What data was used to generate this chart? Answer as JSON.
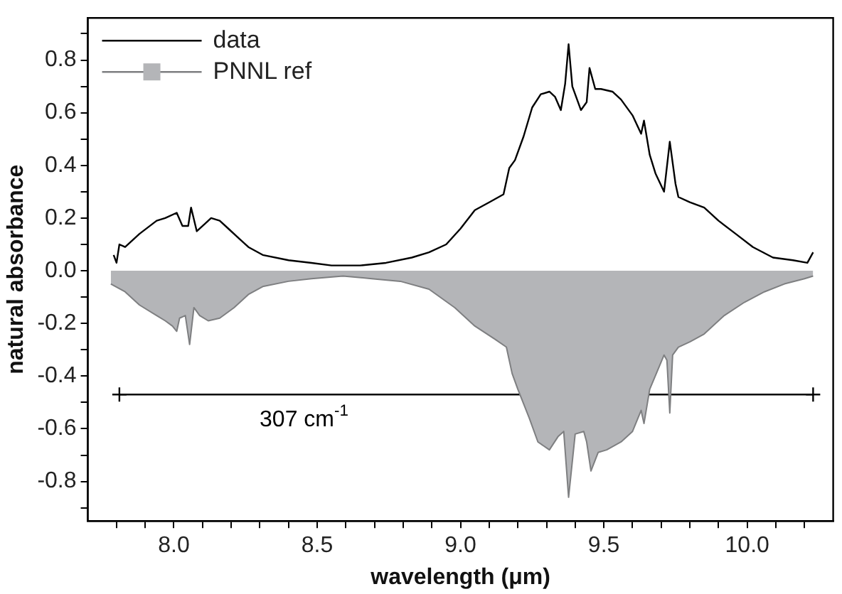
{
  "chart_data": {
    "type": "line",
    "xlabel": "wavelength (μm)",
    "ylabel": "natural absorbance",
    "xlim": [
      7.7,
      10.3
    ],
    "xticks": [
      {
        "value": 7.8,
        "label": null
      },
      {
        "value": 7.9,
        "label": null
      },
      {
        "value": 8,
        "label": "8.0"
      },
      {
        "value": 8.1,
        "label": null
      },
      {
        "value": 8.2,
        "label": null
      },
      {
        "value": 8.3,
        "label": null
      },
      {
        "value": 8.4,
        "label": null
      },
      8.5,
      {
        "value": 8.6,
        "label": null
      },
      {
        "value": 8.7,
        "label": null
      },
      {
        "value": 8.8,
        "label": null
      },
      {
        "value": 8.9,
        "label": null
      },
      {
        "value": 9,
        "label": "9.0"
      },
      {
        "value": 9.1,
        "label": null
      },
      {
        "value": 9.2,
        "label": null
      },
      {
        "value": 9.3,
        "label": null
      },
      {
        "value": 9.4,
        "label": null
      },
      9.5,
      {
        "value": 9.6,
        "label": null
      },
      {
        "value": 9.7,
        "label": null
      },
      {
        "value": 9.8,
        "label": null
      },
      {
        "value": 9.9,
        "label": null
      },
      {
        "value": 10,
        "label": "10.0"
      },
      {
        "value": 10.1,
        "label": null
      },
      {
        "value": 10.2,
        "label": null
      }
    ],
    "ylim": [
      -0.95,
      0.96
    ],
    "yticks": [
      -0.8,
      -0.6,
      -0.4,
      -0.2,
      {
        "value": 0,
        "label": "0.0"
      },
      0.2,
      0.4,
      0.6,
      0.8,
      {
        "value": -0.9,
        "label": null
      },
      {
        "value": -0.7,
        "label": null
      },
      {
        "value": -0.5,
        "label": null
      },
      {
        "value": -0.3,
        "label": null
      },
      {
        "value": -0.1,
        "label": null
      },
      {
        "value": 0.1,
        "label": null
      },
      {
        "value": 0.3,
        "label": null
      },
      {
        "value": 0.5,
        "label": null
      },
      {
        "value": 0.7,
        "label": null
      },
      {
        "value": 0.9,
        "label": null
      }
    ],
    "grid": false,
    "legend": "top left",
    "marker": "none",
    "line_style": "solid",
    "annotations": [
      "307 cm$^{-1}$"
    ],
    "series": [
      {
        "name": "data",
        "color": "#000000",
        "x": [
          7.79,
          7.8,
          7.81,
          7.83,
          7.88,
          7.94,
          7.97,
          8.01,
          8.03,
          8.05,
          8.06,
          8.08,
          8.11,
          8.13,
          8.16,
          8.19,
          8.23,
          8.26,
          8.31,
          8.4,
          8.48,
          8.55,
          8.65,
          8.74,
          8.83,
          8.89,
          8.95,
          9.0,
          9.05,
          9.1,
          9.15,
          9.17,
          9.19,
          9.22,
          9.25,
          9.28,
          9.31,
          9.33,
          9.35,
          9.365,
          9.377,
          9.39,
          9.42,
          9.44,
          9.45,
          9.47,
          9.49,
          9.53,
          9.56,
          9.6,
          9.63,
          9.64,
          9.66,
          9.68,
          9.71,
          9.73,
          9.75,
          9.76,
          9.8,
          9.85,
          9.9,
          9.96,
          10.02,
          10.09,
          10.16,
          10.21,
          10.23
        ],
        "values": [
          0.06,
          0.03,
          0.1,
          0.09,
          0.14,
          0.19,
          0.2,
          0.22,
          0.17,
          0.17,
          0.24,
          0.15,
          0.18,
          0.2,
          0.19,
          0.16,
          0.12,
          0.09,
          0.06,
          0.04,
          0.03,
          0.02,
          0.02,
          0.03,
          0.05,
          0.07,
          0.1,
          0.16,
          0.23,
          0.26,
          0.29,
          0.39,
          0.42,
          0.51,
          0.62,
          0.67,
          0.68,
          0.66,
          0.61,
          0.71,
          0.86,
          0.7,
          0.61,
          0.64,
          0.77,
          0.69,
          0.69,
          0.68,
          0.65,
          0.59,
          0.52,
          0.57,
          0.44,
          0.37,
          0.3,
          0.49,
          0.33,
          0.28,
          0.26,
          0.24,
          0.19,
          0.14,
          0.09,
          0.05,
          0.04,
          0.03,
          0.07
        ]
      },
      {
        "name": "PNNL ref",
        "type": "area",
        "color": "#b4b5b8",
        "x": [
          7.78,
          7.83,
          7.88,
          7.94,
          7.97,
          7.995,
          8.01,
          8.02,
          8.04,
          8.055,
          8.07,
          8.09,
          8.12,
          8.16,
          8.21,
          8.26,
          8.31,
          8.4,
          8.48,
          8.59,
          8.69,
          8.79,
          8.89,
          8.98,
          9.05,
          9.12,
          9.16,
          9.18,
          9.2,
          9.24,
          9.27,
          9.31,
          9.34,
          9.36,
          9.377,
          9.4,
          9.43,
          9.44,
          9.455,
          9.48,
          9.51,
          9.56,
          9.6,
          9.63,
          9.64,
          9.66,
          9.71,
          9.72,
          9.73,
          9.74,
          9.76,
          9.8,
          9.85,
          9.92,
          9.99,
          10.06,
          10.13,
          10.2,
          10.23
        ],
        "values": [
          -0.05,
          -0.08,
          -0.13,
          -0.17,
          -0.19,
          -0.21,
          -0.23,
          -0.18,
          -0.17,
          -0.28,
          -0.14,
          -0.17,
          -0.19,
          -0.18,
          -0.14,
          -0.09,
          -0.06,
          -0.04,
          -0.03,
          -0.02,
          -0.03,
          -0.04,
          -0.07,
          -0.14,
          -0.21,
          -0.26,
          -0.29,
          -0.39,
          -0.45,
          -0.56,
          -0.65,
          -0.68,
          -0.63,
          -0.61,
          -0.86,
          -0.62,
          -0.61,
          -0.65,
          -0.76,
          -0.69,
          -0.68,
          -0.65,
          -0.61,
          -0.53,
          -0.58,
          -0.45,
          -0.32,
          -0.34,
          -0.54,
          -0.32,
          -0.29,
          -0.27,
          -0.24,
          -0.17,
          -0.12,
          -0.08,
          -0.05,
          -0.03,
          -0.02
        ]
      },
      {
        "type": "line",
        "color": "#000000",
        "marker": "cross",
        "x": [
          7.81,
          10.23
        ],
        "values": [
          -0.47,
          -0.47
        ]
      }
    ]
  }
}
